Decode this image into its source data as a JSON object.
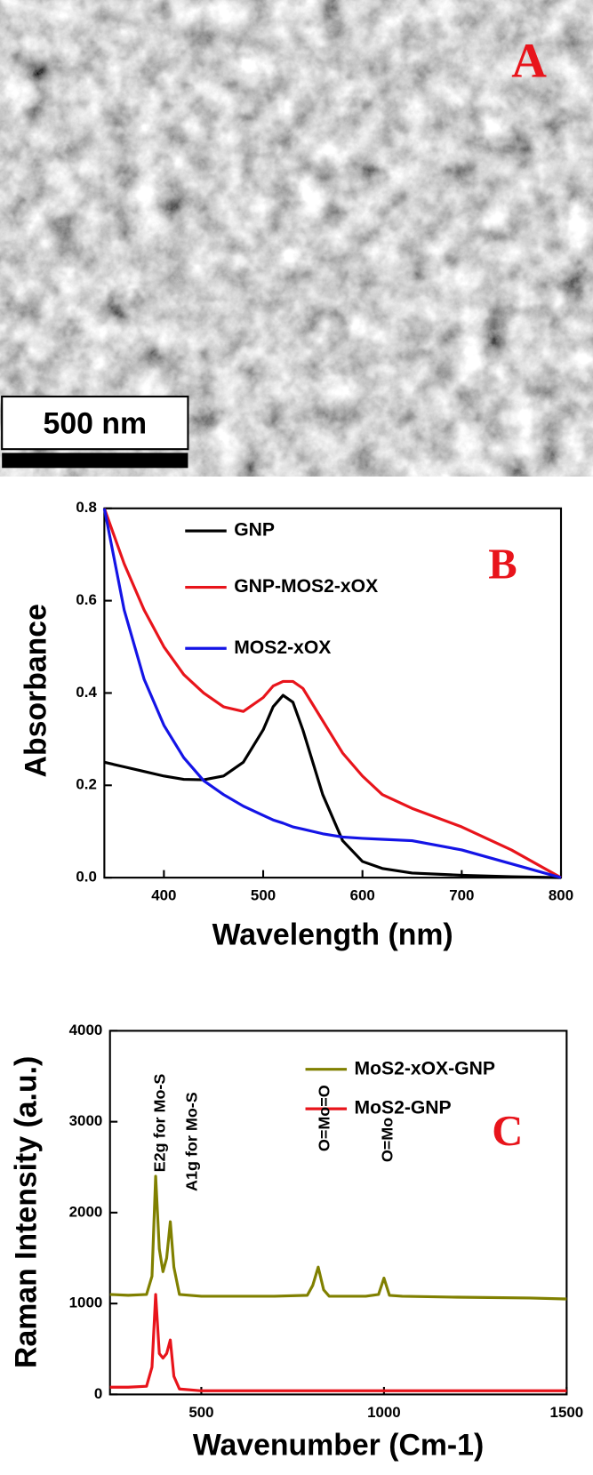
{
  "panel_a": {
    "label": "A",
    "scale_bar": "500 nm"
  },
  "chart_data": [
    {
      "type": "line",
      "panel_label": "B",
      "xlabel": "Wavelength (nm)",
      "ylabel": "Absorbance",
      "xlim": [
        340,
        800
      ],
      "xticks": [
        400,
        500,
        600,
        700,
        800
      ],
      "ylim": [
        0,
        0.8
      ],
      "yticks": [
        {
          "value": 0,
          "label": "0.0"
        },
        0.2,
        0.4,
        0.6,
        0.8
      ],
      "x": [
        340,
        360,
        380,
        400,
        420,
        440,
        460,
        480,
        500,
        510,
        520,
        530,
        540,
        560,
        580,
        600,
        620,
        650,
        700,
        750,
        800
      ],
      "series": [
        {
          "name": "GNP",
          "color": "#000000",
          "values": [
            0.25,
            0.24,
            0.23,
            0.22,
            0.213,
            0.212,
            0.22,
            0.25,
            0.32,
            0.37,
            0.395,
            0.38,
            0.32,
            0.18,
            0.08,
            0.035,
            0.02,
            0.01,
            0.005,
            0.002,
            0
          ]
        },
        {
          "name": "GNP-MOS2-xOX",
          "color": "#e8141b",
          "values": [
            0.8,
            0.68,
            0.58,
            0.5,
            0.44,
            0.4,
            0.37,
            0.36,
            0.39,
            0.415,
            0.425,
            0.425,
            0.41,
            0.34,
            0.27,
            0.22,
            0.18,
            0.15,
            0.11,
            0.06,
            0
          ]
        },
        {
          "name": "MOS2-xOX",
          "color": "#1414e6",
          "values": [
            0.8,
            0.58,
            0.43,
            0.33,
            0.26,
            0.21,
            0.18,
            0.155,
            0.135,
            0.125,
            0.118,
            0.11,
            0.105,
            0.095,
            0.088,
            0.085,
            0.083,
            0.08,
            0.06,
            0.03,
            0
          ]
        }
      ]
    },
    {
      "type": "line",
      "panel_label": "C",
      "xlabel": "Wavenumber (Cm-1)",
      "ylabel": "Raman Intensity (a.u.)",
      "xlim": [
        250,
        1500
      ],
      "xticks": [
        500,
        1000,
        1500
      ],
      "ylim": [
        0,
        4000
      ],
      "yticks": [
        0,
        1000,
        2000,
        3000,
        4000
      ],
      "x": [
        250,
        300,
        350,
        365,
        375,
        385,
        395,
        405,
        415,
        425,
        440,
        500,
        600,
        700,
        790,
        805,
        820,
        835,
        850,
        950,
        985,
        1000,
        1015,
        1050,
        1200,
        1400,
        1500
      ],
      "series": [
        {
          "name": "MoS2-xOX-GNP",
          "color": "#808000",
          "values": [
            1100,
            1090,
            1100,
            1300,
            2400,
            1600,
            1350,
            1500,
            1900,
            1400,
            1100,
            1080,
            1080,
            1080,
            1090,
            1200,
            1400,
            1150,
            1080,
            1080,
            1100,
            1280,
            1090,
            1080,
            1070,
            1060,
            1050
          ]
        },
        {
          "name": "MoS2-GNP",
          "color": "#e8141b",
          "values": [
            80,
            80,
            90,
            300,
            1100,
            450,
            400,
            450,
            600,
            200,
            60,
            40,
            40,
            40,
            40,
            40,
            40,
            40,
            40,
            40,
            40,
            40,
            40,
            40,
            40,
            40,
            40
          ]
        }
      ],
      "annotations": [
        "E2g for Mo-S",
        "A1g for Mo-S",
        "O=Mo=O",
        "O=Mo"
      ]
    }
  ]
}
